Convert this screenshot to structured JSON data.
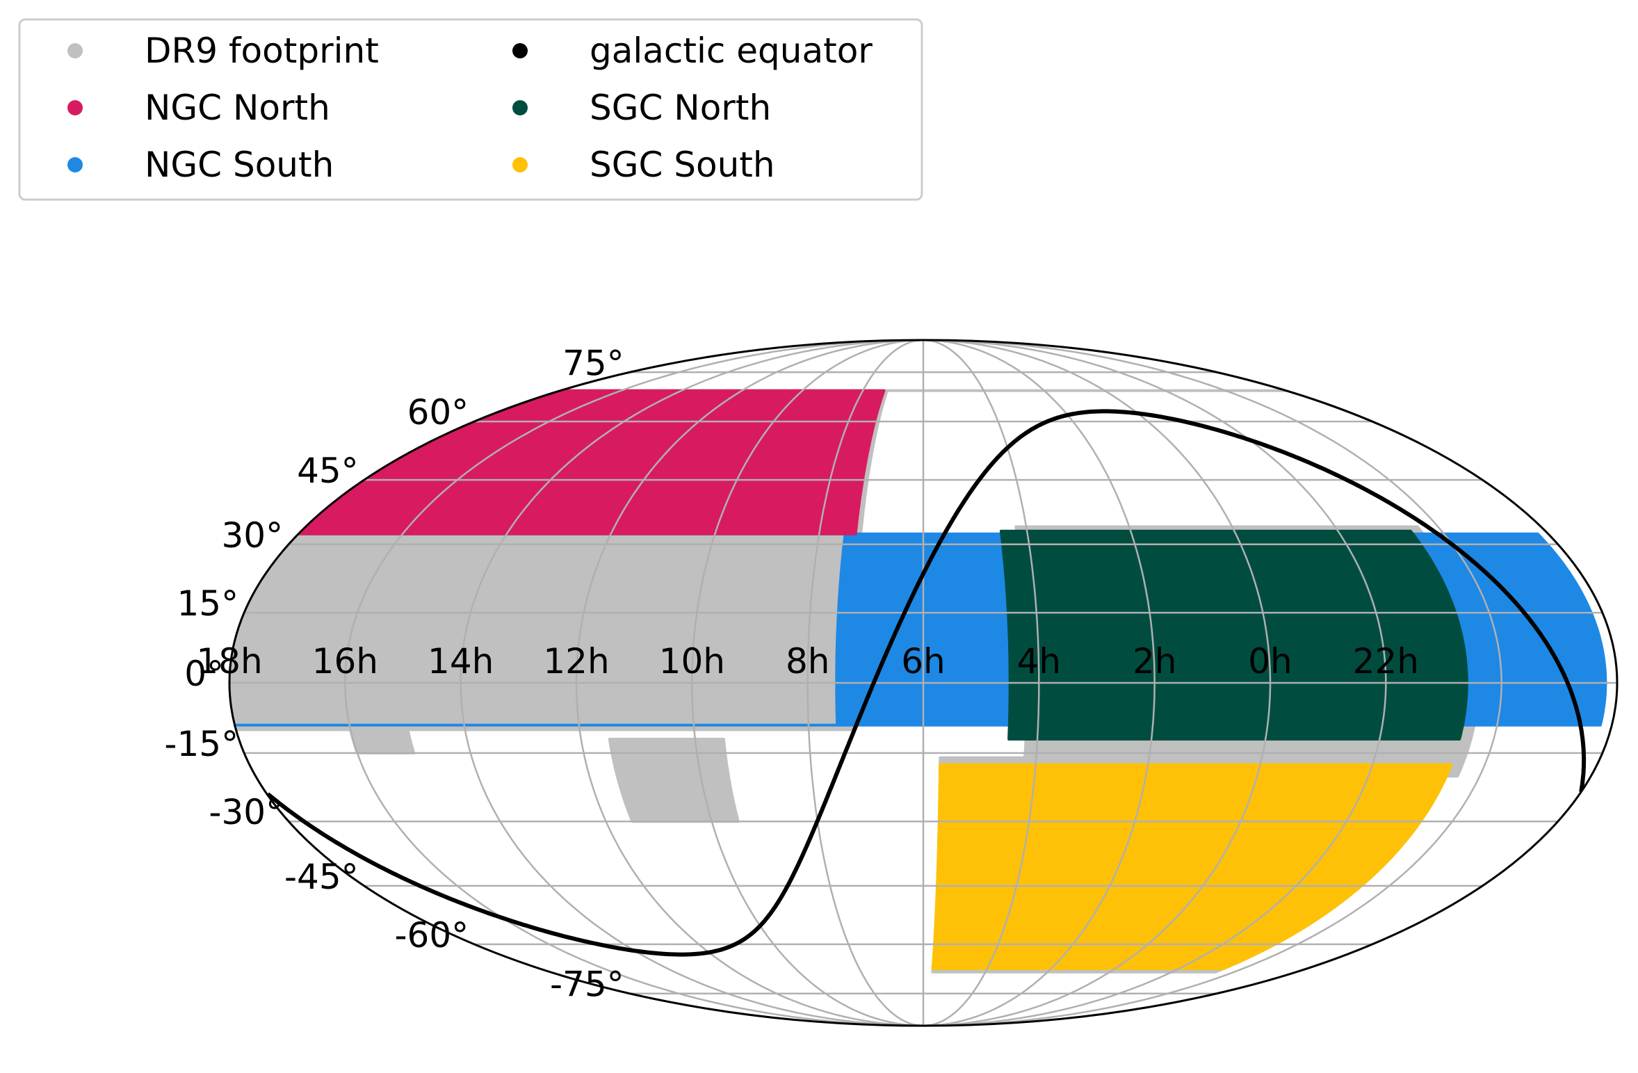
{
  "chart_data": {
    "type": "scatter",
    "projection": "mollweide",
    "title": "",
    "xlabel": "",
    "ylabel": "",
    "grid": true,
    "legend_position": "top-left",
    "legend": [
      {
        "name": "DR9 footprint",
        "color": "#c0c0c0"
      },
      {
        "name": "NGC North",
        "color": "#d81b60"
      },
      {
        "name": "NGC South",
        "color": "#1e88e5"
      },
      {
        "name": "galactic equator",
        "color": "#000000"
      },
      {
        "name": "SGC North",
        "color": "#004d40"
      },
      {
        "name": "SGC South",
        "color": "#ffc107"
      }
    ],
    "ra_tick_labels": [
      {
        "ra_h": 18,
        "label": "18h"
      },
      {
        "ra_h": 16,
        "label": "16h"
      },
      {
        "ra_h": 14,
        "label": "14h"
      },
      {
        "ra_h": 12,
        "label": "12h"
      },
      {
        "ra_h": 10,
        "label": "10h"
      },
      {
        "ra_h": 8,
        "label": "8h"
      },
      {
        "ra_h": 6,
        "label": "6h"
      },
      {
        "ra_h": 4,
        "label": "4h"
      },
      {
        "ra_h": 2,
        "label": "2h"
      },
      {
        "ra_h": 0,
        "label": "0h"
      },
      {
        "ra_h": 22,
        "label": "22h"
      }
    ],
    "dec_tick_labels": [
      {
        "dec": 75,
        "label": "75°"
      },
      {
        "dec": 60,
        "label": "60°"
      },
      {
        "dec": 45,
        "label": "45°"
      },
      {
        "dec": 30,
        "label": "30°"
      },
      {
        "dec": 15,
        "label": "15°"
      },
      {
        "dec": 0,
        "label": "0°"
      },
      {
        "dec": -15,
        "label": "-15°"
      },
      {
        "dec": -30,
        "label": "-30°"
      },
      {
        "dec": -45,
        "label": "-45°"
      },
      {
        "dec": -60,
        "label": "-60°"
      },
      {
        "dec": -75,
        "label": "-75°"
      }
    ],
    "regions": [
      {
        "name": "DR9 footprint",
        "color": "#c0c0c0",
        "ra_range_h": [
          7.2,
          18.0
        ],
        "dec_range": [
          -10,
          69
        ]
      },
      {
        "name": "DR9 footprint",
        "color": "#c0c0c0",
        "ra_range_h": [
          9.5,
          11.5
        ],
        "dec_range": [
          -30,
          -12
        ]
      },
      {
        "name": "DR9 footprint",
        "color": "#c0c0c0",
        "ra_range_h": [
          15.0,
          16.0
        ],
        "dec_range": [
          -15,
          -8
        ]
      },
      {
        "name": "DR9 footprint",
        "color": "#c0c0c0",
        "ra_range_h": [
          20.4,
          28.2
        ],
        "dec_range": [
          -20,
          34
        ]
      },
      {
        "name": "DR9 footprint",
        "color": "#c0c0c0",
        "ra_range_h": [
          20.6,
          29.7
        ],
        "dec_range": [
          -68,
          -16
        ]
      },
      {
        "name": "NGC North",
        "color": "#d81b60",
        "ra_range_h": [
          7.3,
          18.0
        ],
        "dec_range": [
          32.375,
          69
        ]
      },
      {
        "name": "NGC South",
        "color": "#1e88e5",
        "ra_range_h": [
          7.5,
          18.2
        ],
        "dec_range": [
          -9,
          32.375
        ]
      },
      {
        "name": "SGC North",
        "color": "#004d40",
        "ra_range_h": [
          20.6,
          28.5
        ],
        "dec_range": [
          -12,
          33
        ]
      },
      {
        "name": "SGC South",
        "color": "#ffc107",
        "ra_range_h": [
          20.6,
          29.7
        ],
        "dec_range": [
          -67,
          -17.5
        ]
      }
    ]
  }
}
